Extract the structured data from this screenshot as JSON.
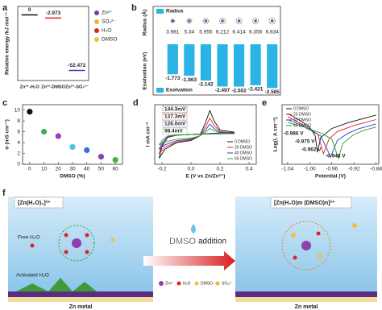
{
  "chart_data": [
    {
      "type": "energy_level",
      "panel": "a",
      "ylabel": "Relative energy /kJ mol⁻¹",
      "categories": [
        "Zn²⁺-H₂O",
        "Zn²⁺-DMSO",
        "Zn²⁺-SO₄²⁻"
      ],
      "values": [
        0,
        -2.973,
        -52.472
      ],
      "colors": [
        "#111111",
        "#e02020",
        "#3a3ab0"
      ],
      "ylim": [
        -62,
        8
      ],
      "legend": [
        {
          "name": "Zn²⁺",
          "color": "#7b3fa0"
        },
        {
          "name": "SO₄²⁻",
          "color": "#e8b830"
        },
        {
          "name": "H₂O",
          "color": "#d62728"
        },
        {
          "name": "DMSO",
          "color": "#f0c040"
        }
      ]
    },
    {
      "type": "bar",
      "panel": "b",
      "ylabel": "Esolvation (eV)",
      "y2label": "Radius (Å)",
      "series": [
        {
          "name": "Radius",
          "color": "#2bb3e6",
          "axis": "y2",
          "values": [
            3.981,
            5.34,
            5.955,
            6.212,
            6.414,
            6.356,
            6.634
          ]
        },
        {
          "name": "Esolvation",
          "color": "#2bb3e6",
          "values": [
            -1.773,
            -1.863,
            -2.142,
            -2.497,
            -2.502,
            -2.421,
            -2.585
          ]
        }
      ],
      "ylim": [
        -3,
        0
      ],
      "y2lim": [
        0,
        8
      ]
    },
    {
      "type": "scatter",
      "panel": "c",
      "xlabel": "DMSO (%)",
      "ylabel": "σ (mS cm⁻¹)",
      "x": [
        0,
        10,
        20,
        30,
        40,
        50,
        60
      ],
      "values": [
        9.7,
        6.0,
        5.2,
        3.2,
        2.6,
        1.4,
        0.8
      ],
      "colors": [
        "#111111",
        "#3cb44b",
        "#9b3fb5",
        "#45c4e0",
        "#3a6fd0",
        "#8e3fb0",
        "#3cb44b"
      ],
      "xlim": [
        -5,
        65
      ],
      "ylim": [
        0,
        11
      ],
      "xticks": [
        0,
        10,
        20,
        30,
        40,
        50,
        60
      ],
      "yticks": [
        0,
        2,
        4,
        6,
        8,
        10
      ]
    },
    {
      "type": "line",
      "panel": "d",
      "xlabel": "E (V vs Zn/Zn²⁺)",
      "ylabel": "I mA cm⁻²",
      "xlim": [
        -0.25,
        0.45
      ],
      "ylim": [
        -2,
        2
      ],
      "xticks": [
        -0.2,
        {
          "value": 0,
          "label": "0.0"
        },
        0.2,
        0.4
      ],
      "series": [
        {
          "name": "0 DMSO",
          "color": "#111111",
          "x": [
            -0.22,
            -0.18,
            -0.1,
            0,
            0.06,
            0.1,
            0.13,
            0.16,
            0.2,
            0.3,
            0.2,
            0.1,
            0,
            -0.1,
            -0.16,
            -0.2,
            -0.22
          ],
          "values": [
            -1.6,
            -1.0,
            -0.55,
            -0.4,
            -0.1,
            0.8,
            1.6,
            0.9,
            0.3,
            0.15,
            0.1,
            0.05,
            0,
            -0.05,
            -0.2,
            -0.8,
            -1.6
          ]
        },
        {
          "name": "20 DMSO",
          "color": "#e02020",
          "x": [
            -0.22,
            -0.18,
            -0.1,
            0,
            0.06,
            0.1,
            0.13,
            0.16,
            0.2,
            0.3,
            0.2,
            0.1,
            0,
            -0.1,
            -0.16,
            -0.2,
            -0.22
          ],
          "values": [
            -1.3,
            -0.85,
            -0.5,
            -0.35,
            -0.1,
            0.5,
            1.1,
            0.6,
            0.2,
            0.1,
            0.08,
            0.04,
            0,
            -0.05,
            -0.2,
            -0.7,
            -1.3
          ]
        },
        {
          "name": "40 DMSO",
          "color": "#2040d0",
          "x": [
            -0.22,
            -0.18,
            -0.1,
            0,
            0.06,
            0.1,
            0.13,
            0.16,
            0.2,
            0.3,
            0.2,
            0.1,
            0,
            -0.1,
            -0.16,
            -0.2,
            -0.22
          ],
          "values": [
            -1.0,
            -0.7,
            -0.42,
            -0.3,
            -0.1,
            0.3,
            0.7,
            0.4,
            0.15,
            0.08,
            0.06,
            0.03,
            0,
            -0.04,
            -0.15,
            -0.55,
            -1.0
          ]
        },
        {
          "name": "60 DMSO",
          "color": "#2ca02c",
          "x": [
            -0.22,
            -0.18,
            -0.1,
            0,
            0.06,
            0.1,
            0.13,
            0.16,
            0.2,
            0.3,
            0.2,
            0.1,
            0,
            -0.1,
            -0.16,
            -0.2,
            -0.22
          ],
          "values": [
            -0.7,
            -0.5,
            -0.33,
            -0.25,
            -0.1,
            0.15,
            0.4,
            0.25,
            0.1,
            0.05,
            0.04,
            0.02,
            0,
            -0.03,
            -0.1,
            -0.4,
            -0.7
          ]
        }
      ],
      "annotations": [
        {
          "text": "144.3mV",
          "color": "#111111"
        },
        {
          "text": "137.3mV",
          "color": "#e02020"
        },
        {
          "text": "126.0mV",
          "color": "#2040d0"
        },
        {
          "text": "98.4mV",
          "color": "#2ca02c"
        }
      ]
    },
    {
      "type": "line",
      "panel": "e",
      "xlabel": "Potential (V)",
      "ylabel": "Log(i, A cm⁻²)",
      "xlim": [
        -1.05,
        -0.875
      ],
      "ylim": [
        -5,
        -1
      ],
      "xticks": [
        -1.04,
        {
          "value": -1,
          "label": "-1.00"
        },
        -0.96,
        -0.92,
        -0.88
      ],
      "series": [
        {
          "name": "0 DMSO",
          "color": "#111111",
          "x": [
            -1.04,
            -1.02,
            -1,
            -0.99,
            -0.986,
            -0.98,
            -0.96,
            -0.93,
            -0.9,
            -0.88
          ],
          "values": [
            -1.6,
            -2.0,
            -2.5,
            -3.1,
            -4.2,
            -3.2,
            -2.6,
            -2.2,
            -1.9,
            -1.7
          ]
        },
        {
          "name": "20 DMSO",
          "color": "#e02020",
          "x": [
            -1.04,
            -1.02,
            -1,
            -0.985,
            -0.975,
            -0.965,
            -0.95,
            -0.92,
            -0.9,
            -0.88
          ],
          "values": [
            -1.8,
            -2.2,
            -2.6,
            -3.0,
            -4.3,
            -3.3,
            -2.8,
            -2.4,
            -2.2,
            -2.0
          ]
        },
        {
          "name": "40 DMSO",
          "color": "#2040d0",
          "x": [
            -1.04,
            -1.02,
            -1,
            -0.98,
            -0.962,
            -0.95,
            -0.93,
            -0.91,
            -0.88
          ],
          "values": [
            -2.0,
            -2.3,
            -2.7,
            -3.1,
            -4.5,
            -3.4,
            -2.9,
            -2.6,
            -2.3
          ]
        },
        {
          "name": "60 DMSO",
          "color": "#2ca02c",
          "x": [
            -1.04,
            -1.01,
            -0.98,
            -0.96,
            -0.948,
            -0.94,
            -0.92,
            -0.9,
            -0.88
          ],
          "values": [
            -2.2,
            -2.5,
            -2.9,
            -3.3,
            -4.6,
            -3.6,
            -3.0,
            -2.7,
            -2.5
          ]
        }
      ],
      "annotations": [
        {
          "text": "-0.986 V",
          "color": "#111111"
        },
        {
          "text": "-0.975 V",
          "color": "#e02020"
        },
        {
          "text": "-0.962 V",
          "color": "#2040d0"
        },
        {
          "text": "-0.948 V",
          "color": "#2ca02c"
        }
      ]
    }
  ],
  "diagram": {
    "panel": "f",
    "left_title": "[Zn(H₂O)₆]²⁺",
    "free": "Free H₂O",
    "activated": "Activated H₂O",
    "left_base": "Zn metal",
    "arrow_label1": "DMSO",
    "arrow_label2": "addition",
    "right_title": "[Zn(H₂O)m (DMSO)n]²⁺",
    "right_base": "Zn metal",
    "legend": [
      "Zn²⁺",
      "H₂O",
      "DMSO",
      "SO₄²⁻"
    ]
  }
}
